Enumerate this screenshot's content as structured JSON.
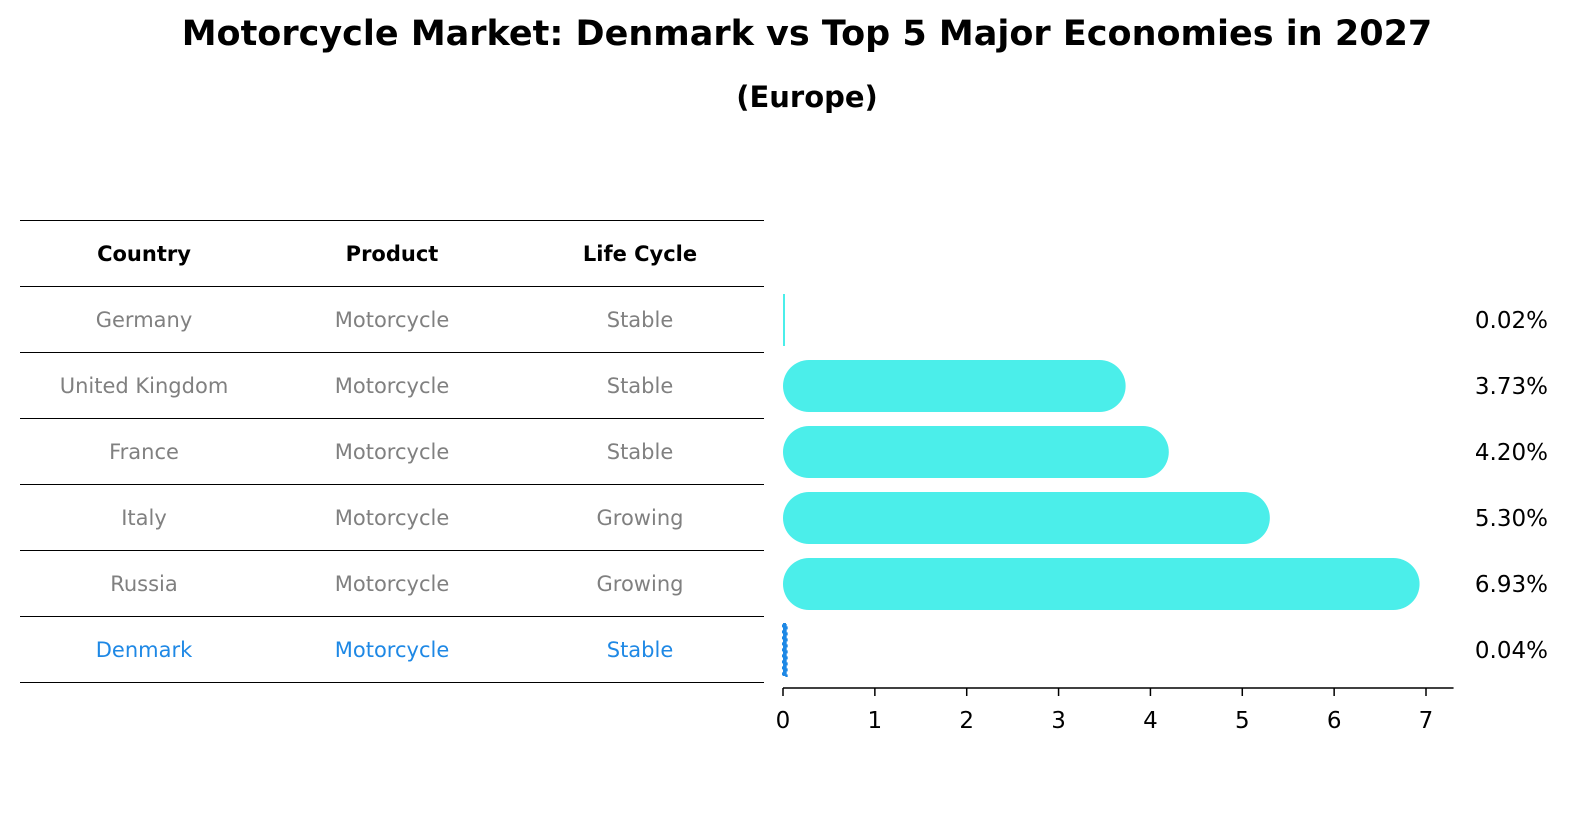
{
  "title": "Motorcycle Market: Denmark vs Top 5 Major Economies in 2027",
  "subtitle": "(Europe)",
  "table": {
    "headers": [
      "Country",
      "Product",
      "Life Cycle"
    ],
    "rows": [
      [
        "Germany",
        "Motorcycle",
        "Stable"
      ],
      [
        "United Kingdom",
        "Motorcycle",
        "Stable"
      ],
      [
        "France",
        "Motorcycle",
        "Stable"
      ],
      [
        "Italy",
        "Motorcycle",
        "Growing"
      ],
      [
        "Russia",
        "Motorcycle",
        "Growing"
      ],
      [
        "Denmark",
        "Motorcycle",
        "Stable"
      ]
    ],
    "highlight_row": "Denmark"
  },
  "chart_data": {
    "type": "bar",
    "orientation": "horizontal",
    "categories": [
      "Germany",
      "United Kingdom",
      "France",
      "Italy",
      "Russia",
      "Denmark"
    ],
    "values": [
      0.02,
      3.73,
      4.2,
      5.3,
      6.93,
      0.04
    ],
    "value_labels": [
      "0.02%",
      "3.73%",
      "4.20%",
      "5.30%",
      "6.93%",
      "0.04%"
    ],
    "xlim": [
      0,
      7.3
    ],
    "xticks": [
      0,
      1,
      2,
      3,
      4,
      5,
      6,
      7
    ],
    "grid": false,
    "colors": {
      "bar": "#4beeea",
      "highlight": "#1e88e5",
      "highlight_category": "Denmark"
    }
  }
}
